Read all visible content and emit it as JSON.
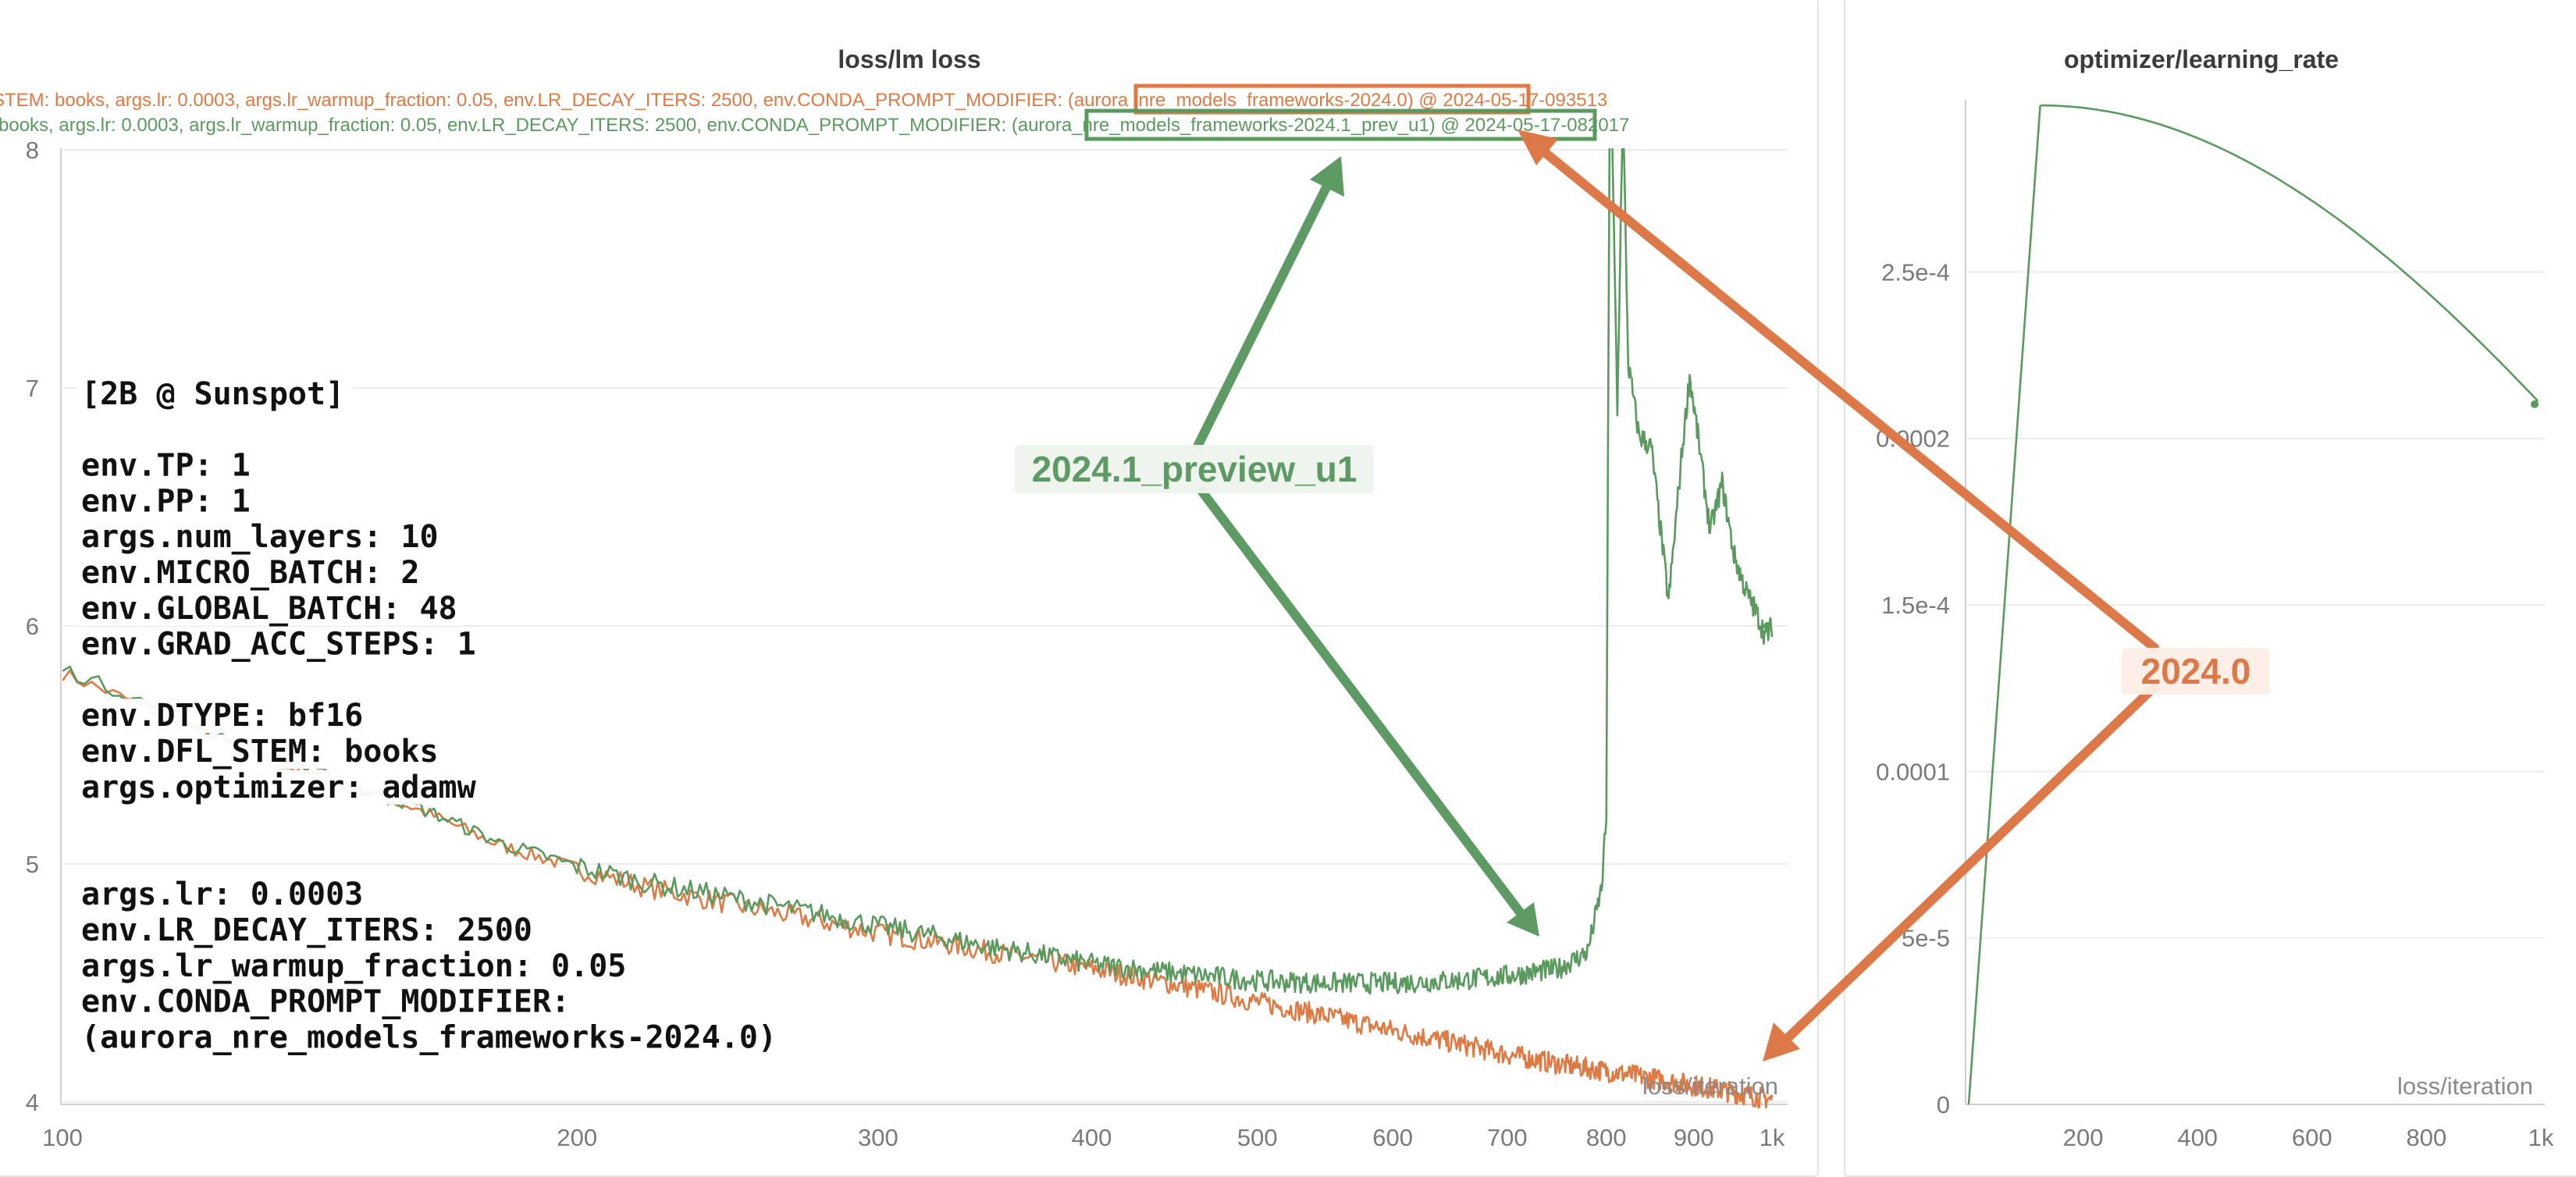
{
  "charts": {
    "left_title": "loss/lm loss",
    "right_title": "optimizer/learning_rate",
    "left_xlabel": "loss/iteration",
    "right_xlabel": "loss/iteration"
  },
  "legend": {
    "orange": {
      "prefix": "STEM: books, args.lr: 0.0003, args.lr_warmup_fraction: 0.05, env.LR_DECAY_ITERS: 2500, env.CONDA_PROMPT_MODIFIER: ",
      "boxed": "(aurora_nre_models_frameworks-2024.0)",
      "suffix": " @ 2024-05-17-093513"
    },
    "green": {
      "prefix": "books, args.lr: 0.0003, args.lr_warmup_fraction: 0.05, env.LR_DECAY_ITERS: 2500, env.CONDA_PROMPT_MODIFIER: ",
      "boxed": "(aurora_nre_models_frameworks-2024.1_prev",
      "suffix": "_u1)",
      "date": " @ 2024-05-17-082017"
    }
  },
  "config_box": {
    "lines": [
      "[2B @ Sunspot]",
      "",
      "env.TP: 1",
      "env.PP: 1",
      "args.num_layers: 10",
      "env.MICRO_BATCH: 2",
      "env.GLOBAL_BATCH: 48",
      "env.GRAD_ACC_STEPS: 1",
      "",
      "env.DTYPE: bf16",
      "env.DFL_STEM: books",
      "args.optimizer: adamw",
      "",
      "",
      "args.lr: 0.0003",
      "env.LR_DECAY_ITERS: 2500",
      "args.lr_warmup_fraction: 0.05",
      "env.CONDA_PROMPT_MODIFIER:",
      "(aurora_nre_models_frameworks-2024.0)"
    ]
  },
  "annotations": {
    "green_label": "2024.1_preview_u1",
    "orange_label": "2024.0"
  },
  "colors": {
    "green": "#5a9a5f",
    "orange": "#de7a44",
    "annot_green": "#5e9a63",
    "annot_orange": "#dd7848"
  },
  "chart_data": [
    {
      "type": "line",
      "title": "loss/lm loss",
      "xlabel": "loss/iteration",
      "x_scale": "log",
      "xlim": [
        100,
        1000
      ],
      "ylim": [
        4,
        8
      ],
      "xticks": [
        100,
        200,
        300,
        400,
        500,
        600,
        700,
        800,
        900,
        1000
      ],
      "xtick_labels": [
        "100",
        "200",
        "300",
        "400",
        "500",
        "600",
        "700",
        "800",
        "900",
        "1k"
      ],
      "yticks": [
        4,
        5,
        6,
        7,
        8
      ],
      "grid": true,
      "series": [
        {
          "name": "(aurora_nre_models_frameworks-2024.0)",
          "color": "#de7a44",
          "points": [
            [
              100,
              5.8
            ],
            [
              110,
              5.68
            ],
            [
              120,
              5.56
            ],
            [
              130,
              5.46
            ],
            [
              140,
              5.37
            ],
            [
              150,
              5.3
            ],
            [
              160,
              5.24
            ],
            [
              170,
              5.16
            ],
            [
              180,
              5.08
            ],
            [
              200,
              4.98
            ],
            [
              220,
              4.9
            ],
            [
              250,
              4.82
            ],
            [
              300,
              4.71
            ],
            [
              350,
              4.63
            ],
            [
              400,
              4.56
            ],
            [
              450,
              4.49
            ],
            [
              500,
              4.42
            ],
            [
              550,
              4.36
            ],
            [
              600,
              4.3
            ],
            [
              650,
              4.25
            ],
            [
              700,
              4.2
            ],
            [
              750,
              4.16
            ],
            [
              800,
              4.13
            ],
            [
              850,
              4.1
            ],
            [
              900,
              4.07
            ],
            [
              950,
              4.04
            ],
            [
              1000,
              4.01
            ]
          ]
        },
        {
          "name": "(aurora_nre_models_frameworks-2024.1_preview_u1)",
          "color": "#5a9a5f",
          "points": [
            [
              100,
              5.82
            ],
            [
              110,
              5.7
            ],
            [
              120,
              5.58
            ],
            [
              130,
              5.48
            ],
            [
              140,
              5.39
            ],
            [
              150,
              5.31
            ],
            [
              160,
              5.25
            ],
            [
              170,
              5.17
            ],
            [
              180,
              5.09
            ],
            [
              200,
              4.99
            ],
            [
              220,
              4.92
            ],
            [
              250,
              4.85
            ],
            [
              300,
              4.74
            ],
            [
              350,
              4.65
            ],
            [
              400,
              4.58
            ],
            [
              450,
              4.54
            ],
            [
              500,
              4.51
            ],
            [
              550,
              4.5
            ],
            [
              600,
              4.5
            ],
            [
              650,
              4.51
            ],
            [
              700,
              4.53
            ],
            [
              750,
              4.56
            ],
            [
              780,
              4.63
            ],
            [
              795,
              4.9
            ],
            [
              800,
              5.2
            ],
            [
              804,
              8.5
            ],
            [
              812,
              6.9
            ],
            [
              818,
              8.2
            ],
            [
              824,
              7.1
            ],
            [
              830,
              6.95
            ],
            [
              836,
              6.8
            ],
            [
              850,
              6.75
            ],
            [
              870,
              6.1
            ],
            [
              885,
              6.7
            ],
            [
              895,
              7.05
            ],
            [
              905,
              6.8
            ],
            [
              920,
              6.4
            ],
            [
              935,
              6.6
            ],
            [
              950,
              6.3
            ],
            [
              965,
              6.15
            ],
            [
              980,
              6.05
            ],
            [
              992,
              5.95
            ],
            [
              1000,
              6.0
            ]
          ]
        }
      ]
    },
    {
      "type": "line",
      "title": "optimizer/learning_rate",
      "xlabel": "loss/iteration",
      "xlim": [
        0,
        1000
      ],
      "ylim": [
        0,
        0.0003
      ],
      "xticks": [
        200,
        400,
        600,
        800,
        1000
      ],
      "xtick_labels": [
        "200",
        "400",
        "600",
        "800",
        "1k"
      ],
      "yticks": [
        0,
        5e-05,
        0.0001,
        0.00015,
        0.0002,
        0.00025
      ],
      "ytick_labels": [
        "0",
        "5e-5",
        "0.0001",
        "1.5e-4",
        "0.0002",
        "2.5e-4"
      ],
      "grid": true,
      "series": [
        {
          "name": "(aurora_nre_models_frameworks-2024.1_preview_u1)",
          "color": "#5a9a5f",
          "points": [
            [
              0,
              0
            ],
            [
              125,
              0.0003
            ],
            [
              200,
              0.000299
            ],
            [
              300,
              0.000295
            ],
            [
              400,
              0.000287
            ],
            [
              500,
              0.000276
            ],
            [
              600,
              0.000262
            ],
            [
              700,
              0.000245
            ],
            [
              800,
              0.000226
            ],
            [
              900,
              0.000205
            ],
            [
              1000,
              0.00021
            ]
          ]
        }
      ]
    }
  ]
}
